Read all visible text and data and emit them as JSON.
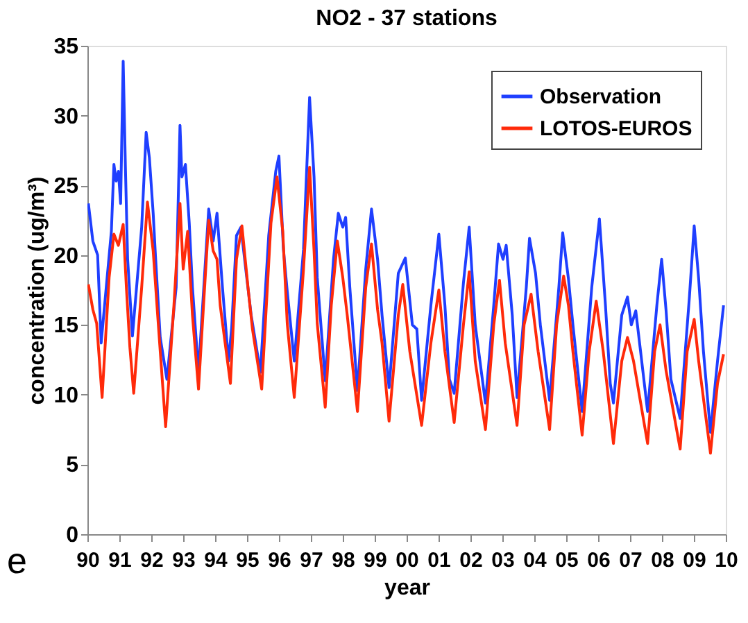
{
  "chart_data": {
    "type": "line",
    "title": "NO2 - 37 stations",
    "xlabel": "year",
    "ylabel": "concentration (ug/m³)",
    "xlim": [
      1990,
      2010
    ],
    "xticks": [
      {
        "value": 1990,
        "label": "90"
      },
      {
        "value": 1991,
        "label": "91"
      },
      {
        "value": 1992,
        "label": "92"
      },
      {
        "value": 1993,
        "label": "93"
      },
      {
        "value": 1994,
        "label": "94"
      },
      {
        "value": 1995,
        "label": "95"
      },
      {
        "value": 1996,
        "label": "96"
      },
      {
        "value": 1997,
        "label": "97"
      },
      {
        "value": 1998,
        "label": "98"
      },
      {
        "value": 1999,
        "label": "99"
      },
      {
        "value": 2000,
        "label": "00"
      },
      {
        "value": 2001,
        "label": "01"
      },
      {
        "value": 2002,
        "label": "02"
      },
      {
        "value": 2003,
        "label": "03"
      },
      {
        "value": 2004,
        "label": "04"
      },
      {
        "value": 2005,
        "label": "05"
      },
      {
        "value": 2006,
        "label": "06"
      },
      {
        "value": 2007,
        "label": "07"
      },
      {
        "value": 2008,
        "label": "08"
      },
      {
        "value": 2009,
        "label": "09"
      },
      {
        "value": 2010,
        "label": "10"
      }
    ],
    "ylim": [
      0,
      35
    ],
    "yticks": [
      0,
      5,
      10,
      15,
      20,
      25,
      30,
      35
    ],
    "grid": false,
    "legend": "top right",
    "marker": "none",
    "line_style": "solid",
    "annotations": [
      "e"
    ],
    "series": [
      {
        "name": "Observation",
        "color": "#1f3fff",
        "x": [
          1990.03,
          1990.17,
          1990.32,
          1990.43,
          1990.75,
          1990.83,
          1990.9,
          1990.97,
          1991.04,
          1991.12,
          1991.19,
          1991.26,
          1991.41,
          1991.7,
          1991.84,
          1991.94,
          1992.06,
          1992.13,
          1992.28,
          1992.49,
          1992.78,
          1992.9,
          1992.96,
          1993.07,
          1993.19,
          1993.29,
          1993.48,
          1993.72,
          1993.8,
          1993.94,
          1994.06,
          1994.23,
          1994.42,
          1994.52,
          1994.67,
          1994.81,
          1994.96,
          1995.13,
          1995.42,
          1995.68,
          1995.9,
          1996.0,
          1996.14,
          1996.26,
          1996.48,
          1996.77,
          1996.96,
          1997.1,
          1997.2,
          1997.45,
          1997.71,
          1997.86,
          1998.0,
          1998.09,
          1998.22,
          1998.46,
          1998.72,
          1998.9,
          1999.09,
          1999.23,
          1999.45,
          1999.74,
          1999.96,
          2000.18,
          2000.32,
          2000.47,
          2000.76,
          2001.01,
          2001.2,
          2001.34,
          2001.49,
          2001.78,
          2001.96,
          2002.15,
          2002.47,
          2002.73,
          2002.88,
          2003.02,
          2003.12,
          2003.31,
          2003.46,
          2003.75,
          2003.85,
          2004.04,
          2004.19,
          2004.48,
          2004.77,
          2004.89,
          2005.07,
          2005.21,
          2005.5,
          2005.8,
          2006.04,
          2006.23,
          2006.38,
          2006.48,
          2006.74,
          2006.92,
          2007.04,
          2007.18,
          2007.33,
          2007.55,
          2007.84,
          2007.99,
          2008.13,
          2008.28,
          2008.57,
          2008.86,
          2009.01,
          2009.15,
          2009.3,
          2009.52,
          2009.74,
          2009.93
        ],
        "values": [
          23.7,
          21.0,
          20.0,
          13.7,
          21.7,
          26.5,
          25.3,
          26.0,
          23.7,
          33.9,
          26.3,
          19.7,
          14.2,
          22.0,
          28.8,
          27.0,
          23.0,
          20.0,
          14.1,
          11.1,
          17.7,
          29.3,
          25.6,
          26.5,
          22.3,
          17.7,
          11.6,
          20.4,
          23.3,
          21.0,
          23.0,
          17.7,
          12.4,
          14.8,
          21.4,
          22.0,
          19.0,
          15.7,
          11.6,
          21.4,
          26.0,
          27.1,
          20.4,
          17.4,
          12.4,
          20.4,
          31.3,
          25.6,
          18.4,
          11.0,
          19.7,
          23.0,
          22.0,
          22.7,
          17.7,
          10.3,
          19.0,
          23.3,
          19.7,
          15.7,
          10.5,
          18.7,
          19.8,
          15.0,
          14.7,
          9.6,
          16.4,
          21.5,
          16.4,
          11.1,
          10.1,
          18.0,
          22.0,
          15.0,
          9.4,
          16.4,
          20.8,
          19.7,
          20.7,
          15.7,
          9.8,
          17.7,
          21.2,
          18.7,
          15.0,
          9.6,
          17.7,
          21.6,
          18.3,
          15.0,
          8.8,
          17.7,
          22.6,
          16.4,
          10.8,
          9.4,
          15.7,
          17.0,
          15.0,
          16.0,
          13.1,
          8.8,
          16.4,
          19.7,
          16.0,
          11.1,
          8.3,
          17.0,
          22.1,
          18.3,
          13.1,
          7.3,
          12.4,
          16.4
        ]
      },
      {
        "name": "LOTOS-EUROS",
        "color": "#ff2a0a",
        "x": [
          1990.03,
          1990.17,
          1990.29,
          1990.46,
          1990.68,
          1990.83,
          1990.97,
          1991.12,
          1991.22,
          1991.33,
          1991.45,
          1991.7,
          1991.88,
          1992.06,
          1992.2,
          1992.45,
          1992.71,
          1992.9,
          1993.0,
          1993.14,
          1993.29,
          1993.48,
          1993.68,
          1993.8,
          1993.94,
          1994.06,
          1994.16,
          1994.48,
          1994.67,
          1994.84,
          1995.03,
          1995.17,
          1995.46,
          1995.75,
          1995.94,
          1996.12,
          1996.26,
          1996.48,
          1996.77,
          1996.96,
          1997.1,
          1997.2,
          1997.45,
          1997.64,
          1997.83,
          1998.0,
          1998.14,
          1998.46,
          1998.72,
          1998.9,
          1999.09,
          1999.23,
          1999.45,
          1999.74,
          1999.88,
          2000.1,
          2000.47,
          2000.76,
          2001.01,
          2001.2,
          2001.49,
          2001.78,
          2001.96,
          2002.15,
          2002.47,
          2002.73,
          2002.91,
          2003.09,
          2003.46,
          2003.68,
          2003.9,
          2004.12,
          2004.48,
          2004.7,
          2004.92,
          2005.07,
          2005.21,
          2005.5,
          2005.72,
          2005.94,
          2006.16,
          2006.48,
          2006.74,
          2006.92,
          2007.11,
          2007.55,
          2007.77,
          2007.94,
          2008.13,
          2008.57,
          2008.79,
          2009.01,
          2009.15,
          2009.52,
          2009.74,
          2009.93
        ],
        "values": [
          17.9,
          16.1,
          15.1,
          9.8,
          18.4,
          21.5,
          20.7,
          22.2,
          17.7,
          13.4,
          10.1,
          17.7,
          23.8,
          20.3,
          15.7,
          7.7,
          16.4,
          23.7,
          19.0,
          21.7,
          15.7,
          10.4,
          18.0,
          22.5,
          20.3,
          19.7,
          16.4,
          10.8,
          19.7,
          22.1,
          17.7,
          14.7,
          10.4,
          22.3,
          25.6,
          21.7,
          15.1,
          9.8,
          19.0,
          26.3,
          20.3,
          15.1,
          9.1,
          16.4,
          21.0,
          18.4,
          15.7,
          8.8,
          17.7,
          20.8,
          16.1,
          13.7,
          8.1,
          15.7,
          17.9,
          13.1,
          7.8,
          13.7,
          17.5,
          13.1,
          8.0,
          15.0,
          18.8,
          12.4,
          7.5,
          15.0,
          18.2,
          13.7,
          7.8,
          15.0,
          17.2,
          13.1,
          7.5,
          15.0,
          18.5,
          16.4,
          13.1,
          7.1,
          13.1,
          16.7,
          13.1,
          6.5,
          12.4,
          14.1,
          12.4,
          6.5,
          13.1,
          15.0,
          11.7,
          6.1,
          13.1,
          15.4,
          12.4,
          5.8,
          10.8,
          12.9
        ]
      }
    ]
  }
}
